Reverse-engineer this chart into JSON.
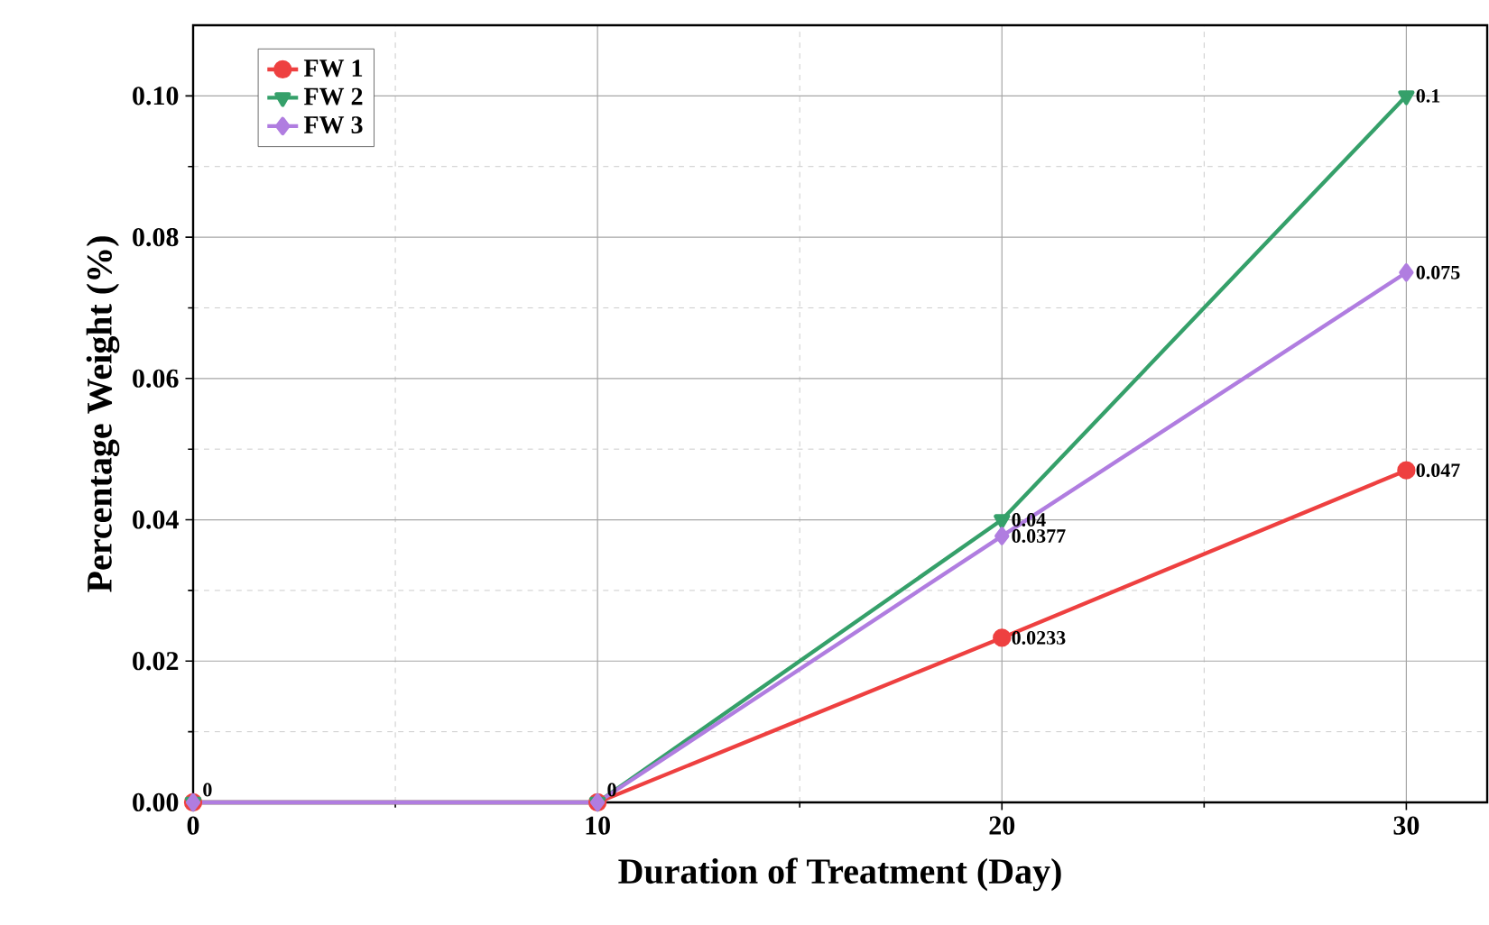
{
  "chart_data": {
    "type": "line",
    "xlabel": "Duration of Treatment (Day)",
    "ylabel": "Percentage Weight (%)",
    "x": [
      0,
      10,
      20,
      30
    ],
    "series": [
      {
        "name": "FW 1",
        "color": "#ee4040",
        "marker": "circle",
        "values": [
          0,
          0,
          0.0233,
          0.047
        ],
        "value_labels": [
          "0",
          "0",
          "0.0233",
          "0.047"
        ]
      },
      {
        "name": "FW 2",
        "color": "#35a06a",
        "marker": "triangle",
        "values": [
          0,
          0,
          0.04,
          0.1
        ],
        "value_labels": [
          null,
          null,
          "0.04",
          "0.1"
        ]
      },
      {
        "name": "FW 3",
        "color": "#b07de0",
        "marker": "diamond",
        "values": [
          0,
          0,
          0.0377,
          0.075
        ],
        "value_labels": [
          null,
          null,
          "0.0377",
          "0.075"
        ]
      }
    ],
    "xlim": [
      0,
      32
    ],
    "ylim": [
      0,
      0.11
    ],
    "xticks": [
      0,
      10,
      20,
      30
    ],
    "yticks": [
      {
        "value": 0,
        "label": "0.00"
      },
      {
        "value": 0.02,
        "label": "0.02"
      },
      {
        "value": 0.04,
        "label": "0.04"
      },
      {
        "value": 0.06,
        "label": "0.06"
      },
      {
        "value": 0.08,
        "label": "0.08"
      },
      {
        "value": 0.1,
        "label": "0.10"
      }
    ],
    "grid": true,
    "legend": "top left",
    "line_style": "solid"
  }
}
